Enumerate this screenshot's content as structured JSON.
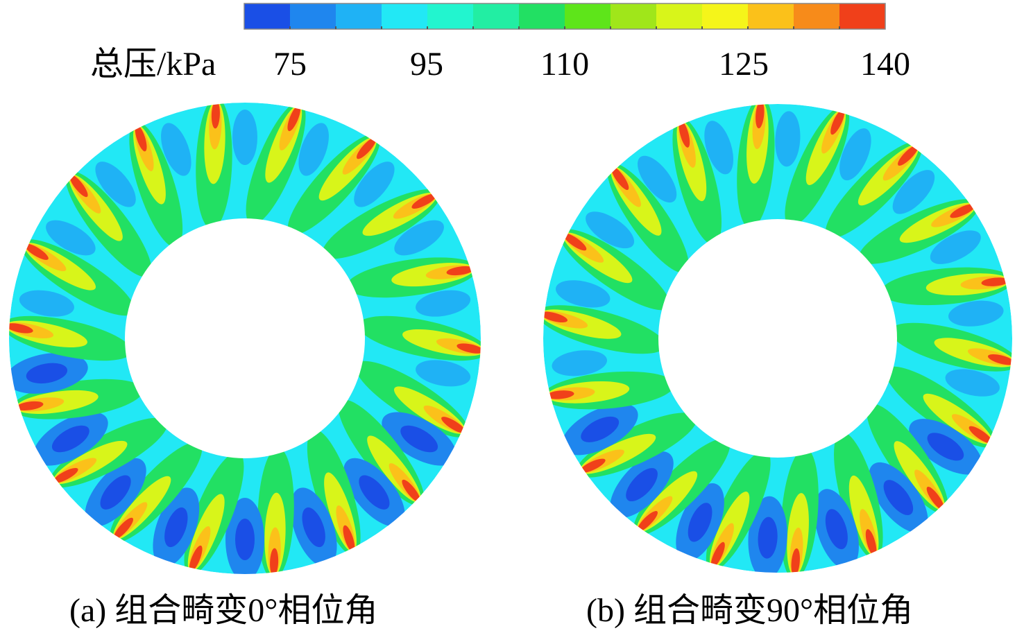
{
  "colorbar": {
    "label": "总压/kPa",
    "ticks": [
      "75",
      "95",
      "110",
      "125",
      "140"
    ],
    "colors": [
      "#1a4fe6",
      "#1f86ee",
      "#1fb2f5",
      "#22e8f5",
      "#22f5cf",
      "#22eea3",
      "#22e063",
      "#5ee51a",
      "#a0e61a",
      "#d8f51a",
      "#f5f51a",
      "#fbc11a",
      "#f78b1a",
      "#f0401a"
    ]
  },
  "panels": [
    {
      "caption": "(a) 组合畸变0°相位角"
    },
    {
      "caption": "(b) 组合畸变90°相位角"
    }
  ]
}
